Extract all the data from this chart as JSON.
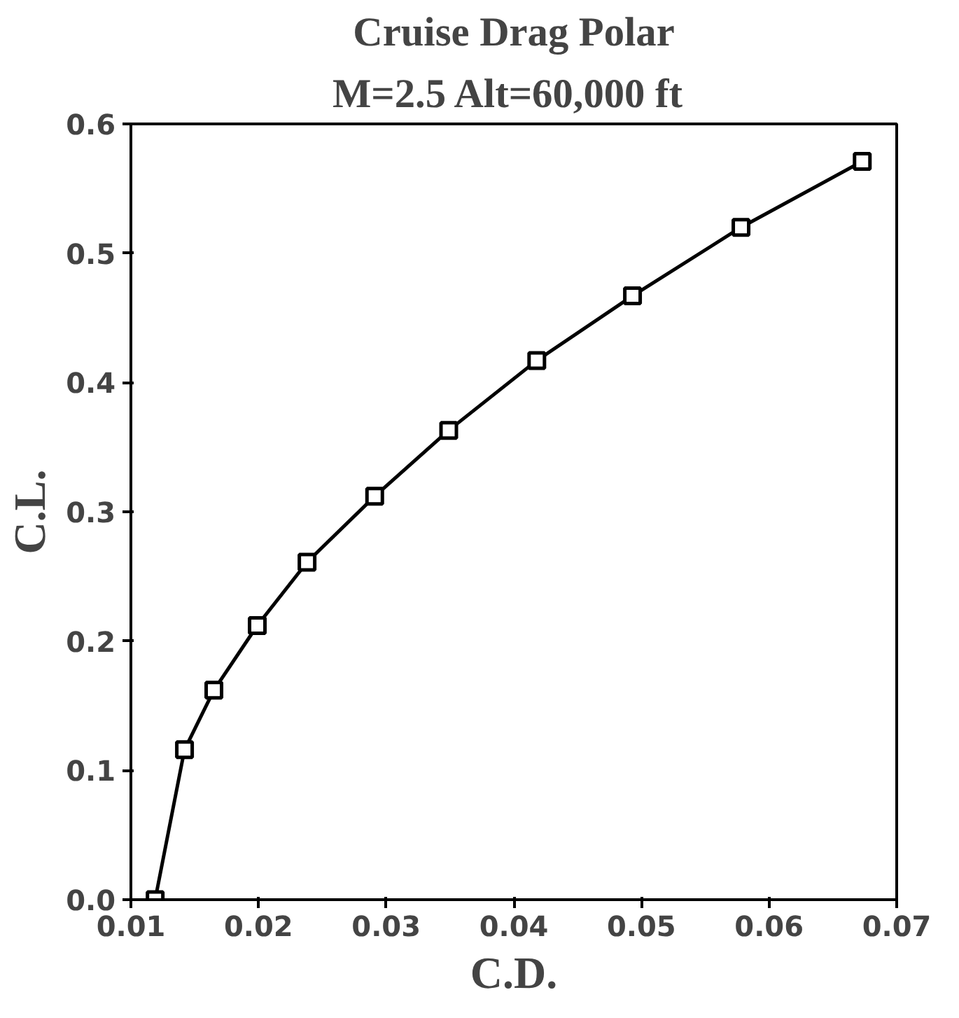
{
  "chart_data": {
    "type": "line",
    "title": "Cruise Drag Polar",
    "subtitle": "M=2.5  Alt=60,000 ft",
    "xlabel": "C.D.",
    "ylabel": "C.L.",
    "x": [
      0.0119,
      0.0142,
      0.0165,
      0.0199,
      0.0238,
      0.0291,
      0.0349,
      0.0418,
      0.0493,
      0.0578,
      0.0673
    ],
    "series": [
      {
        "color": "#000000",
        "values": [
          0.0,
          0.116,
          0.162,
          0.212,
          0.261,
          0.312,
          0.363,
          0.417,
          0.467,
          0.52,
          0.571
        ]
      }
    ],
    "xlim": [
      0.01,
      0.07
    ],
    "ylim": [
      0.0,
      0.6
    ],
    "xticks": [
      {
        "value": 0.01,
        "label": "0.01"
      },
      {
        "value": 0.02,
        "label": "0.02"
      },
      {
        "value": 0.03,
        "label": "0.03"
      },
      {
        "value": 0.04,
        "label": "0.04"
      },
      {
        "value": 0.05,
        "label": "0.05"
      },
      {
        "value": 0.06,
        "label": "0.06"
      },
      {
        "value": 0.07,
        "label": "0.07"
      }
    ],
    "yticks": [
      {
        "value": 0.0,
        "label": "0.0"
      },
      {
        "value": 0.1,
        "label": "0.1"
      },
      {
        "value": 0.2,
        "label": "0.2"
      },
      {
        "value": 0.3,
        "label": "0.3"
      },
      {
        "value": 0.4,
        "label": "0.4"
      },
      {
        "value": 0.5,
        "label": "0.5"
      },
      {
        "value": 0.6,
        "label": "0.6"
      }
    ],
    "grid": false,
    "marker": "square",
    "line_style": "solid"
  }
}
